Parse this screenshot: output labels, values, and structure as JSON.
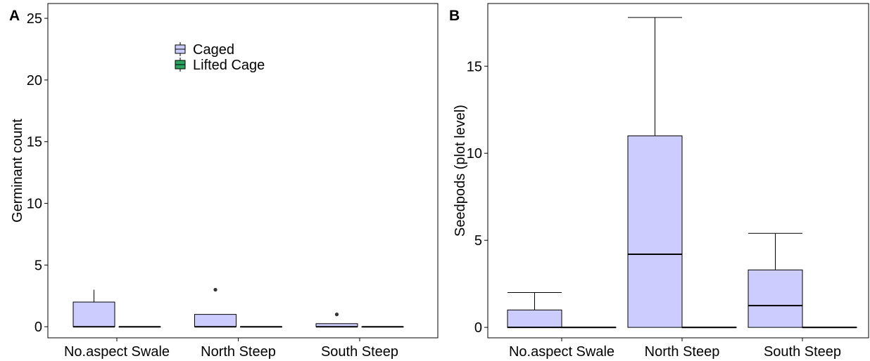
{
  "colors": {
    "caged": "#ccccff",
    "lifted": "#2ca25f",
    "outline": "#000000",
    "outlier": "#333333"
  },
  "legend": {
    "position": "top-center",
    "entries": [
      "Caged",
      "Lifted Cage"
    ]
  },
  "chart_data": [
    {
      "panel": "A",
      "type": "box",
      "ylabel": "Germinant count",
      "xlabel": "",
      "ylim": [
        -0.9,
        26.2
      ],
      "yticks": [
        0,
        5,
        10,
        15,
        20,
        25
      ],
      "grid": false,
      "categories": [
        "No.aspect Swale",
        "North Steep",
        "South Steep"
      ],
      "series": [
        {
          "name": "Caged",
          "boxes": [
            {
              "min": 0,
              "q1": 0,
              "median": 0,
              "q3": 2,
              "max": 3,
              "outliers": []
            },
            {
              "min": 0,
              "q1": 0,
              "median": 0,
              "q3": 1,
              "max": 1,
              "outliers": [
                3
              ]
            },
            {
              "min": 0,
              "q1": 0,
              "median": 0,
              "q3": 0.25,
              "max": 0.25,
              "outliers": [
                1
              ]
            }
          ]
        },
        {
          "name": "Lifted Cage",
          "boxes": [
            {
              "min": 0,
              "q1": 0,
              "median": 0,
              "q3": 0,
              "max": 0,
              "outliers": []
            },
            {
              "min": 0,
              "q1": 0,
              "median": 0,
              "q3": 0,
              "max": 0,
              "outliers": []
            },
            {
              "min": 0,
              "q1": 0,
              "median": 0,
              "q3": 0,
              "max": 0,
              "outliers": []
            }
          ]
        }
      ]
    },
    {
      "panel": "B",
      "type": "box",
      "ylabel": "Seedpods (plot level)",
      "xlabel": "",
      "ylim": [
        -0.6,
        18.6
      ],
      "yticks": [
        0,
        5,
        10,
        15
      ],
      "grid": false,
      "categories": [
        "No.aspect Swale",
        "North Steep",
        "South Steep"
      ],
      "series": [
        {
          "name": "Caged",
          "boxes": [
            {
              "min": 0,
              "q1": 0,
              "median": 0,
              "q3": 1,
              "max": 2,
              "outliers": []
            },
            {
              "min": 0,
              "q1": 0,
              "median": 4.2,
              "q3": 11,
              "max": 17.8,
              "outliers": []
            },
            {
              "min": 0,
              "q1": 0,
              "median": 1.25,
              "q3": 3.3,
              "max": 5.4,
              "outliers": []
            }
          ]
        },
        {
          "name": "Lifted Cage",
          "boxes": [
            {
              "min": 0,
              "q1": 0,
              "median": 0,
              "q3": 0,
              "max": 0,
              "outliers": []
            },
            {
              "min": 0,
              "q1": 0,
              "median": 0,
              "q3": 0,
              "max": 0,
              "outliers": []
            },
            {
              "min": 0,
              "q1": 0,
              "median": 0,
              "q3": 0,
              "max": 0,
              "outliers": []
            }
          ]
        }
      ]
    }
  ]
}
